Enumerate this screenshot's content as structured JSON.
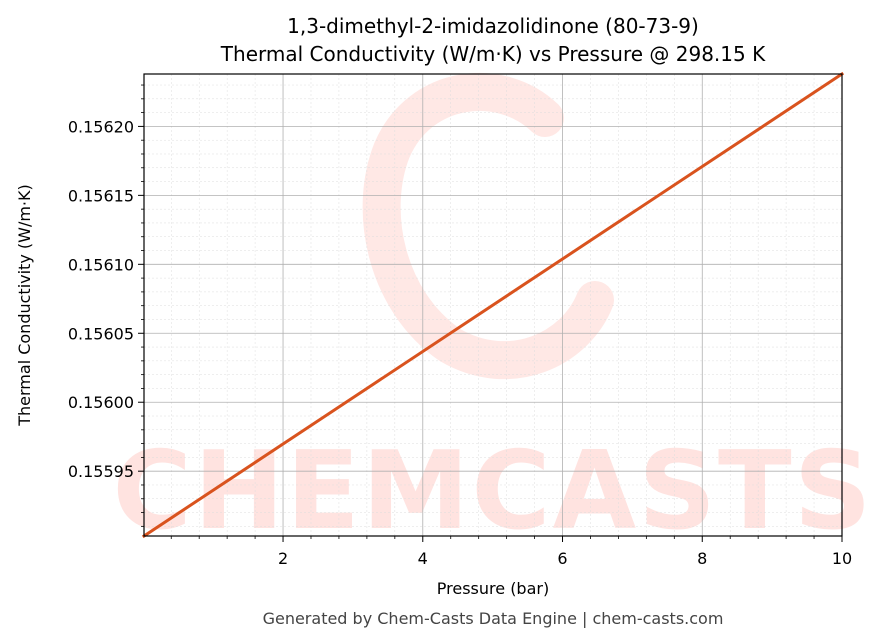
{
  "chart_data": {
    "type": "line",
    "title": "1,3-dimethyl-2-imidazolidinone (80-73-9)",
    "subtitle": "Thermal Conductivity (W/m·K) vs Pressure @ 298.15 K",
    "xlabel": "Pressure (bar)",
    "ylabel": "Thermal Conductivity (W/m·K)",
    "xlim": [
      0.01,
      10
    ],
    "ylim": [
      0.155903,
      0.156238
    ],
    "x_ticks": [
      2,
      4,
      6,
      8,
      10
    ],
    "x_tick_labels": [
      "2",
      "4",
      "6",
      "8",
      "10"
    ],
    "y_ticks": [
      0.15595,
      0.156,
      0.15605,
      0.1561,
      0.15615,
      0.1562
    ],
    "y_tick_labels": [
      "0.15595",
      "0.15600",
      "0.15605",
      "0.15610",
      "0.15615",
      "0.15620"
    ],
    "grid": true,
    "series": [
      {
        "color": "#d9531e",
        "x": [
          0.01,
          10
        ],
        "y": [
          0.155903,
          0.156238
        ]
      }
    ]
  },
  "watermark": {
    "text": "CHEMCASTS",
    "color": "#ffe3e0"
  },
  "footer": "Generated by Chem-Casts Data Engine | chem-casts.com"
}
